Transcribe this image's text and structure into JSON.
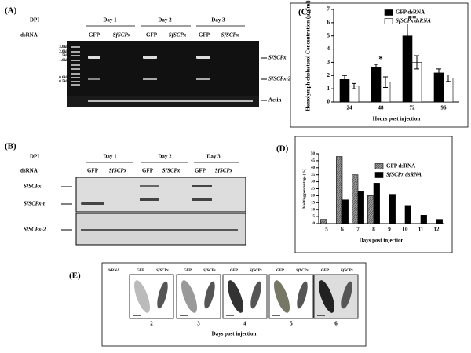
{
  "panel_a": {
    "label": "(A)",
    "dpi": "DPI",
    "days": [
      "Day 1",
      "Day 2",
      "Day 3"
    ],
    "dsrna": "dsRNA",
    "lanes": [
      "GFP",
      "SfSCPx",
      "GFP",
      "SfSCPx",
      "GFP",
      "SfSCPx"
    ],
    "ladder": [
      "3.0kb",
      "2.0kb",
      "1.5kb",
      "1.0kb",
      "0.6kb",
      "0.5kb"
    ],
    "bands": [
      "SfSCPx",
      "SfSCPx-2",
      "Actin"
    ]
  },
  "panel_b": {
    "label": "(B)",
    "dpi": "DPI",
    "days": [
      "Day 1",
      "Day 2",
      "Day 3"
    ],
    "dsrna": "dsRNA",
    "lanes": [
      "GFP",
      "SfSCPx",
      "GFP",
      "SfSCPx",
      "GFP",
      "SfSCPx"
    ],
    "bands": [
      "SfSCPx",
      "SfSCPx-t",
      "SfSCPx-2"
    ]
  },
  "panel_e": {
    "label": "(E)",
    "dsrna": "dsRNA",
    "pair": [
      "GFP",
      "SfSCPx"
    ],
    "days": [
      "2",
      "3",
      "4",
      "5",
      "6"
    ],
    "xlabel": "Days post injection"
  },
  "chart_data": [
    {
      "type": "bar",
      "label": "(C)",
      "ylabel": "Hemolymph cholesterol Concentration (µ g/ml)",
      "xlabel": "Hours post injection",
      "categories": [
        "24",
        "48",
        "72",
        "96"
      ],
      "series": [
        {
          "name": "GFP dsRNA",
          "color": "#000000",
          "values": [
            1.7,
            2.6,
            5.0,
            2.2
          ],
          "errors": [
            0.3,
            0.25,
            0.9,
            0.3
          ]
        },
        {
          "name": "SfSCPx dsRNA",
          "color": "#ffffff",
          "values": [
            1.2,
            1.5,
            3.0,
            1.8
          ],
          "errors": [
            0.2,
            0.4,
            0.5,
            0.25
          ]
        }
      ],
      "annotations": [
        {
          "category": 1,
          "text": "*"
        },
        {
          "category": 2,
          "text": "**"
        }
      ],
      "ylim": [
        0,
        7
      ],
      "yticks": [
        0,
        1,
        2,
        3,
        4,
        5,
        6,
        7
      ]
    },
    {
      "type": "bar",
      "label": "(D)",
      "ylabel": "Molting percentage (%)",
      "xlabel": "Days post injection",
      "categories": [
        "5",
        "6",
        "7",
        "8",
        "9",
        "10",
        "11",
        "12"
      ],
      "series": [
        {
          "name": "GFP dsRNA",
          "color": "#999999",
          "values": [
            3,
            48,
            35,
            20,
            null,
            null,
            null,
            null
          ]
        },
        {
          "name": "SfSCPx dsRNA",
          "color": "#000000",
          "values": [
            null,
            17,
            23,
            29,
            21,
            13,
            6,
            3
          ]
        }
      ],
      "ylim": [
        0,
        50
      ],
      "yticks": [
        0,
        5,
        10,
        15,
        20,
        25,
        30,
        35,
        40,
        45,
        50
      ]
    }
  ]
}
